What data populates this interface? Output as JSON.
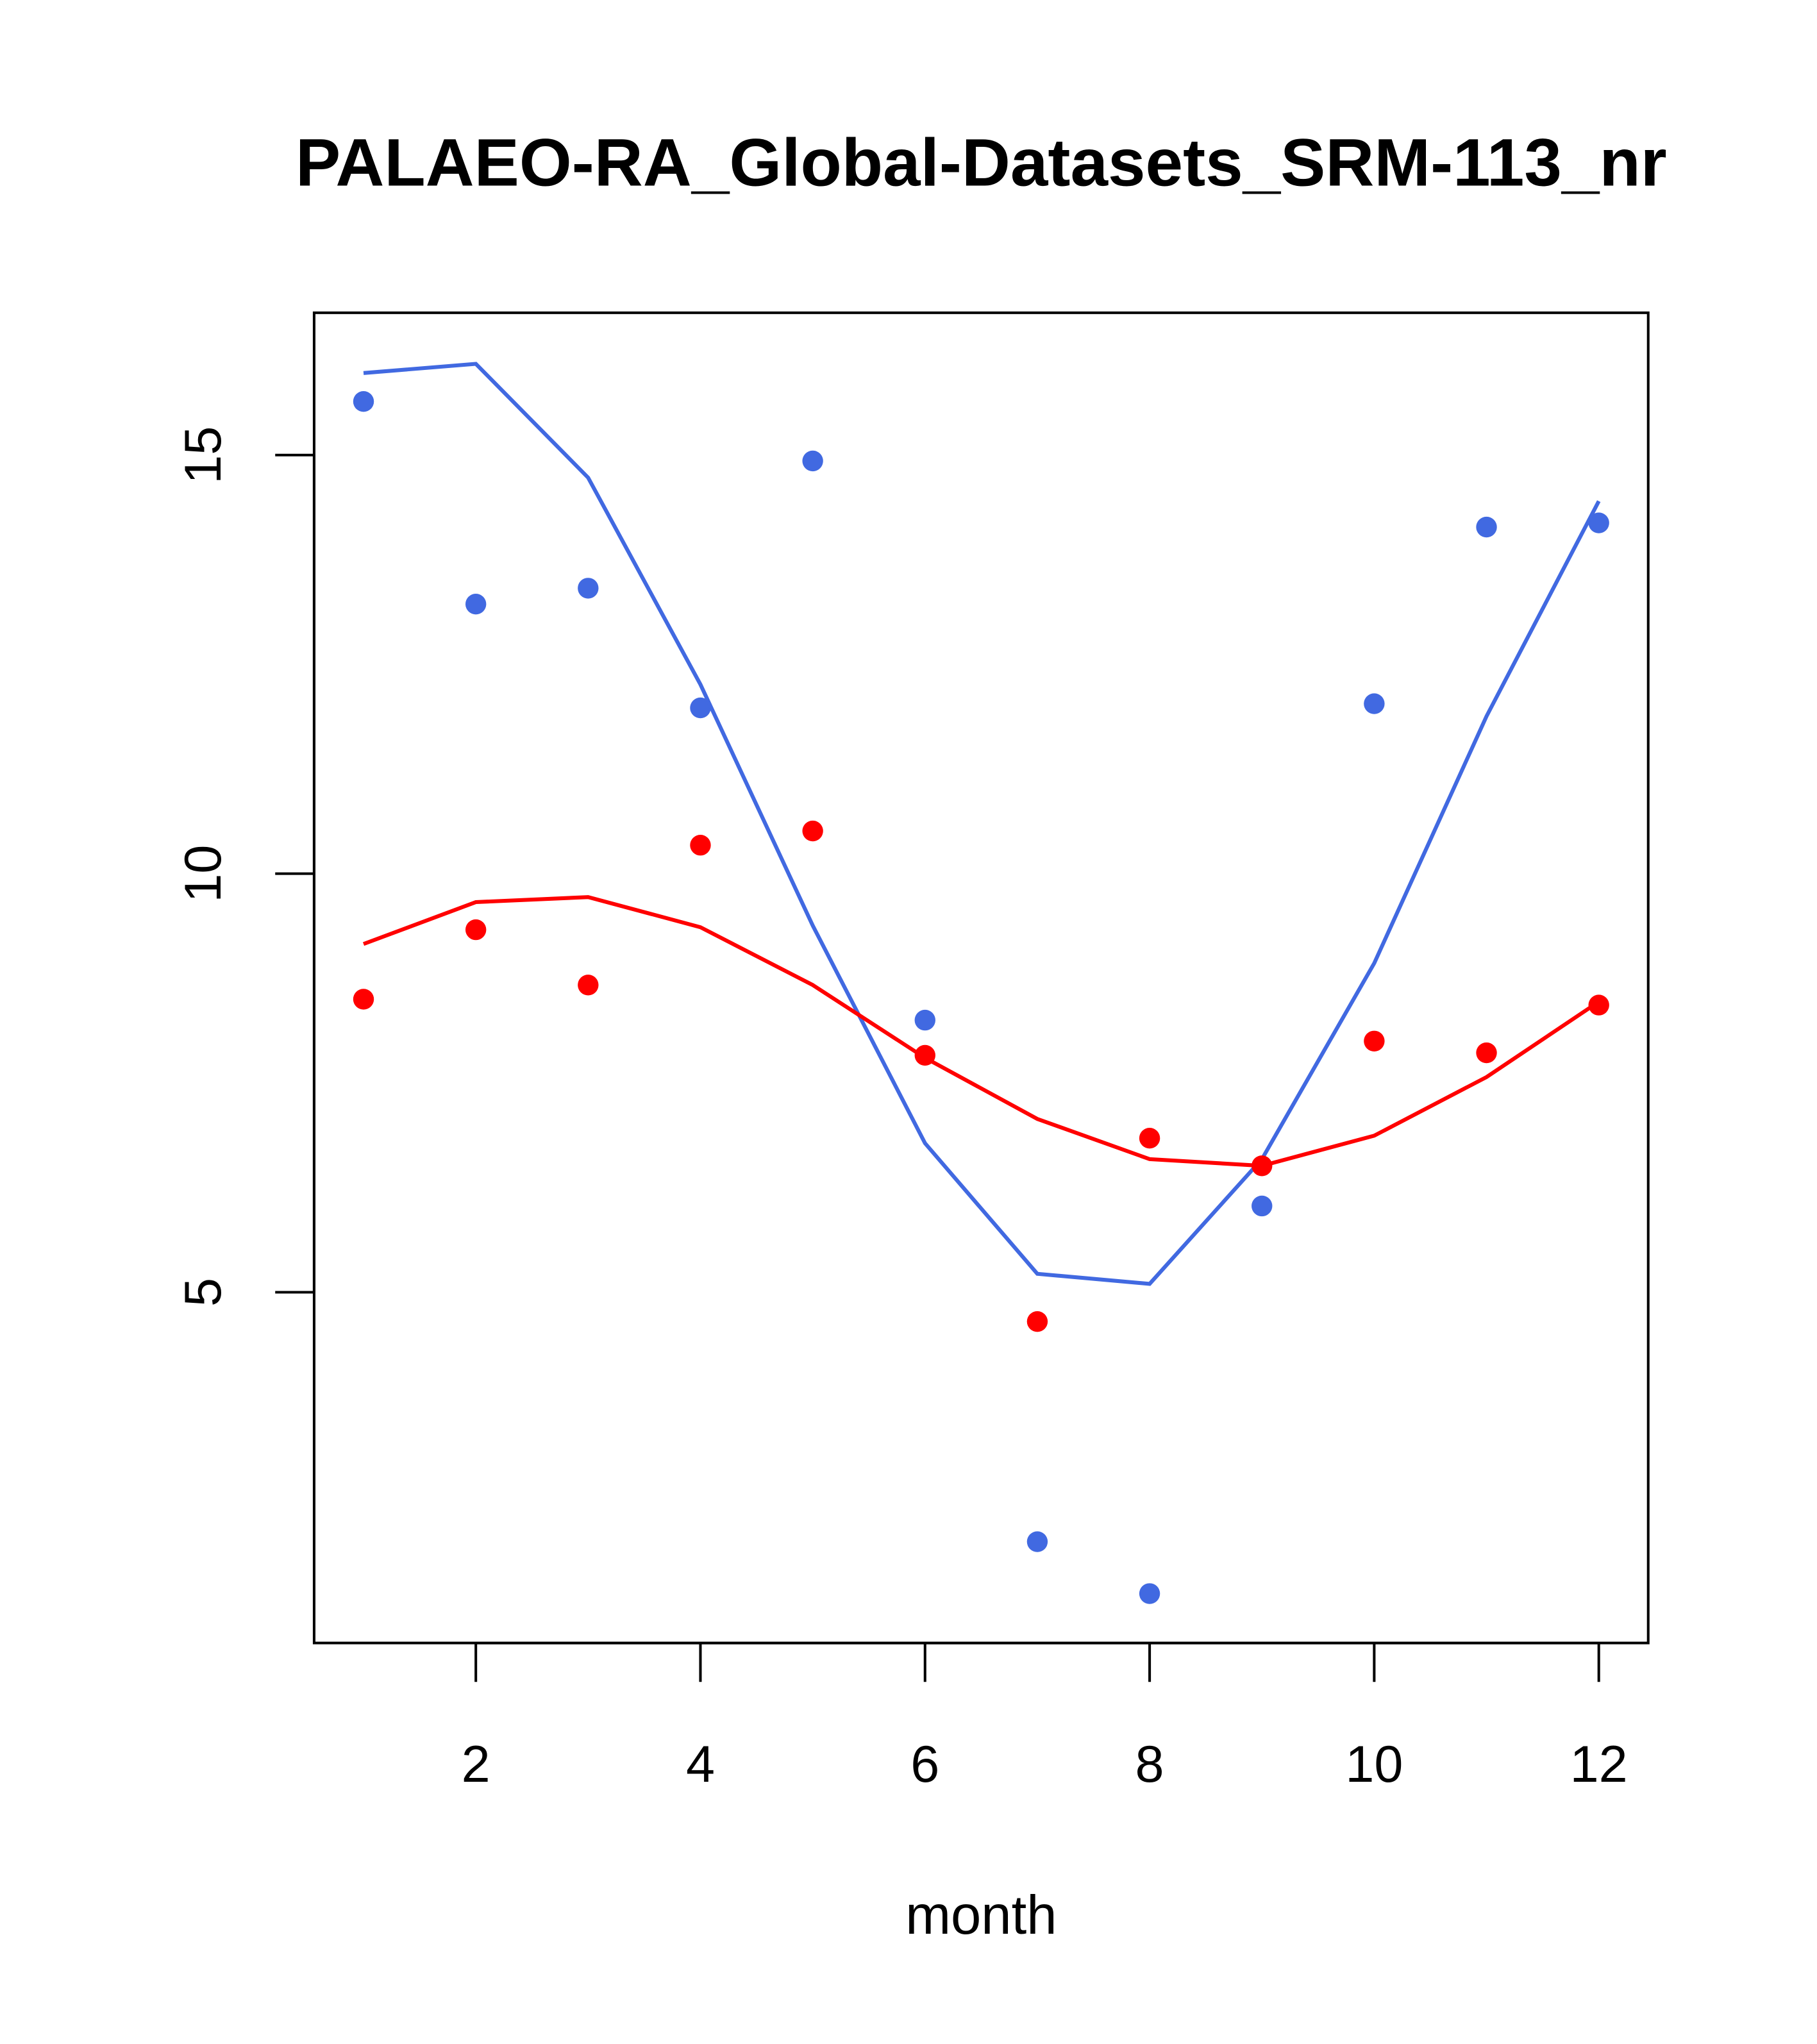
{
  "chart_data": {
    "type": "scatter",
    "title": "PALAEO-RA_Global-Datasets_SRM-113_nr",
    "xlabel": "month",
    "ylabel": "",
    "xlim": [
      0.56,
      12.44
    ],
    "ylim": [
      0.81,
      16.7
    ],
    "xticks": [
      2,
      4,
      6,
      8,
      10,
      12
    ],
    "xtick_labels": [
      "2",
      "4",
      "6",
      "8",
      "10",
      "12"
    ],
    "yticks": [
      5,
      10,
      15
    ],
    "ytick_labels": [
      "5",
      "10",
      "15"
    ],
    "grid": false,
    "x": [
      1,
      2,
      3,
      4,
      5,
      6,
      7,
      8,
      9,
      10,
      11,
      12
    ],
    "series": [
      {
        "name": "blue points",
        "kind": "points",
        "color": "#4169E1",
        "values": [
          15.64,
          13.22,
          13.41,
          11.98,
          14.93,
          8.25,
          2.02,
          1.4,
          6.03,
          12.03,
          14.14,
          14.19
        ]
      },
      {
        "name": "blue line",
        "kind": "line",
        "color": "#4169E1",
        "values": [
          15.98,
          16.09,
          14.73,
          12.26,
          9.38,
          6.78,
          5.22,
          5.1,
          6.59,
          8.93,
          11.88,
          14.45
        ]
      },
      {
        "name": "red points",
        "kind": "points",
        "color": "#FF0000",
        "values": [
          8.5,
          9.33,
          8.67,
          10.34,
          10.51,
          7.83,
          4.65,
          6.84,
          6.51,
          8.0,
          7.86,
          8.43
        ]
      },
      {
        "name": "red line",
        "kind": "line",
        "color": "#FF0000",
        "values": [
          9.16,
          9.66,
          9.72,
          9.36,
          8.67,
          7.8,
          7.07,
          6.59,
          6.51,
          6.87,
          7.57,
          8.47
        ]
      }
    ]
  }
}
